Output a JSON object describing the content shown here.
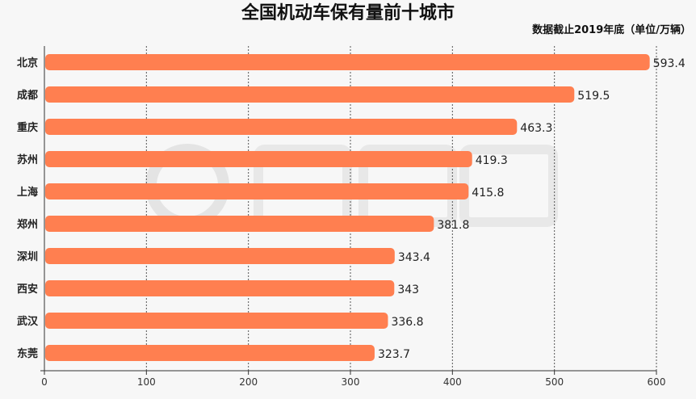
{
  "watermark": {
    "text": "悦西安",
    "latin": "YUEXIAN"
  },
  "chart_data": {
    "type": "bar",
    "orientation": "horizontal",
    "title": "全国机动车保有量前十城市",
    "subtitle": "数据截止2019年底（单位/万辆）",
    "categories": [
      "北京",
      "成都",
      "重庆",
      "苏州",
      "上海",
      "郑州",
      "深圳",
      "西安",
      "武汉",
      "东莞"
    ],
    "values": [
      593.4,
      519.5,
      463.3,
      419.3,
      415.8,
      381.8,
      343.4,
      343,
      336.8,
      323.7
    ],
    "xlim": [
      0,
      600
    ],
    "xticks": [
      0,
      100,
      200,
      300,
      400,
      500,
      600
    ],
    "grid": "vertical dashed",
    "bar_color": "#ff7f50",
    "data_labels": true
  }
}
